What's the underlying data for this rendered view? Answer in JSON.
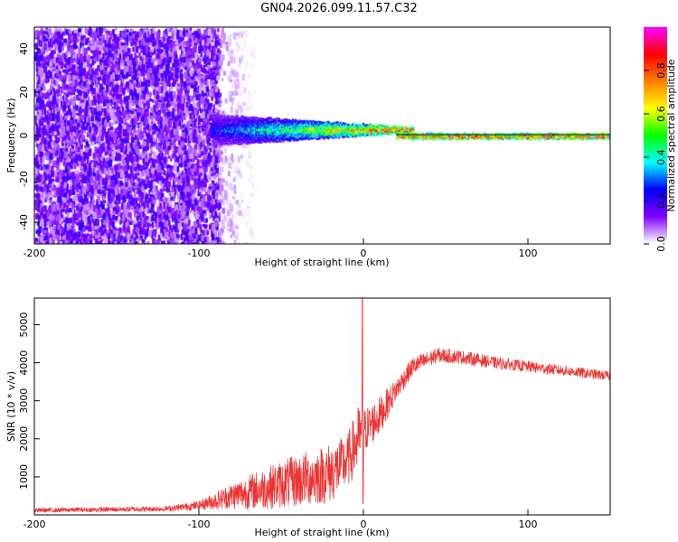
{
  "title": "GN04.2026.099.11.57.C32",
  "chart_data": [
    {
      "type": "heatmap",
      "xlabel": "Height of straight line (km)",
      "ylabel": "Frequency (Hz)",
      "xlim": [
        -200,
        150
      ],
      "ylim": [
        -50,
        50
      ],
      "xticks": [
        -200,
        -100,
        0,
        100
      ],
      "xtick_labels": [
        "-200",
        "-100",
        "0",
        "100"
      ],
      "yticks": [
        40,
        20,
        0,
        -20,
        -40
      ],
      "ytick_labels": [
        "40",
        "20",
        "0",
        "-20",
        "-40"
      ],
      "colorbar": {
        "label": "Normalized spectral amplitude",
        "range": [
          0,
          1
        ],
        "ticks": [
          0.0,
          0.2,
          0.4,
          0.6,
          0.8
        ],
        "tick_labels": [
          "0.0",
          "0.2",
          "0.4",
          "0.6",
          "0.8"
        ],
        "colors": [
          "#ffffff",
          "#8000ff",
          "#0000ff",
          "#00ffff",
          "#00ff00",
          "#ffff00",
          "#ff8000",
          "#ff0000",
          "#ff00ff"
        ]
      },
      "regions": [
        {
          "name": "broadband noise",
          "x": [
            -200,
            -88
          ],
          "freq": [
            -50,
            50
          ],
          "amplitude": 0.12
        },
        {
          "name": "fading noise",
          "x": [
            -88,
            -65
          ],
          "freq": [
            -50,
            50
          ],
          "amplitude": 0.05
        },
        {
          "name": "signal band",
          "x": [
            -92,
            30
          ],
          "freq_center": 3,
          "freq_halfwidth": [
            7,
            1
          ],
          "amplitude": [
            0.25,
            0.95
          ]
        },
        {
          "name": "carrier line",
          "x": [
            20,
            150
          ],
          "freq_center": 0,
          "freq_halfwidth": 1,
          "amplitude": 0.9
        }
      ]
    },
    {
      "type": "line",
      "xlabel": "Height of straight line (km)",
      "ylabel": "SNR (10 * v/v)",
      "xlim": [
        -200,
        150
      ],
      "ylim": [
        0,
        5700
      ],
      "xticks": [
        -200,
        -100,
        0,
        100
      ],
      "xtick_labels": [
        "-200",
        "-100",
        "0",
        "100"
      ],
      "yticks": [
        1000,
        2000,
        3000,
        4000,
        5000
      ],
      "ytick_labels": [
        "1000",
        "2000",
        "3000",
        "4000",
        "5000"
      ],
      "color": "#ee3333",
      "envelope": {
        "x": [
          -200,
          -120,
          -100,
          -80,
          -60,
          -40,
          -20,
          -10,
          -3,
          0,
          10,
          20,
          30,
          45,
          60,
          80,
          100,
          120,
          150
        ],
        "mean": [
          120,
          160,
          250,
          500,
          700,
          900,
          1100,
          1400,
          2000,
          2200,
          2600,
          3300,
          3900,
          4200,
          4150,
          4000,
          3900,
          3800,
          3650
        ],
        "amp": [
          60,
          70,
          120,
          350,
          550,
          700,
          800,
          700,
          900,
          600,
          500,
          300,
          250,
          200,
          180,
          160,
          150,
          140,
          130
        ]
      },
      "spikes": [
        {
          "x": -0.5,
          "y": 5700
        },
        {
          "x": -0.2,
          "y": 300
        }
      ]
    }
  ]
}
